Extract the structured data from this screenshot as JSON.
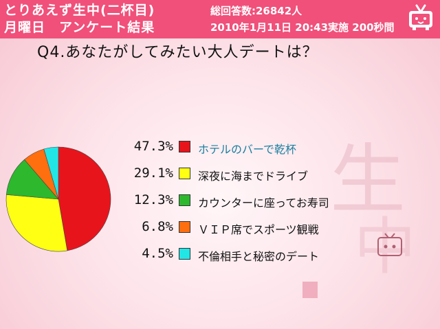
{
  "header": {
    "title_line1": "とりあえず生中(二杯目)",
    "title_line2": "月曜日　アンケート結果",
    "respondents": "総回答数:26842人",
    "datetime": "2010年1月11日 20:43実施 200秒間"
  },
  "question": "Q4.あなたがしてみたい大人デートは？",
  "chart_data": {
    "type": "pie",
    "title": "",
    "categories": [
      "ホテルのバーで乾杯",
      "深夜に海までドライブ",
      "カウンターに座ってお寿司",
      "ＶＩＰ席でスポーツ観戦",
      "不倫相手と秘密のデート"
    ],
    "values": [
      47.3,
      29.1,
      12.3,
      6.8,
      4.5
    ],
    "value_labels": [
      "47.3%",
      "29.1%",
      "12.3%",
      "6.8%",
      "4.5%"
    ],
    "colors": [
      "#e8141c",
      "#ffff14",
      "#2db82d",
      "#ff6e0f",
      "#22e6e6"
    ],
    "legend_position": "right"
  },
  "decoration": {
    "watermark_text": "とりあえず生中(二杯目)",
    "icon": "tv-mascot-icon"
  }
}
